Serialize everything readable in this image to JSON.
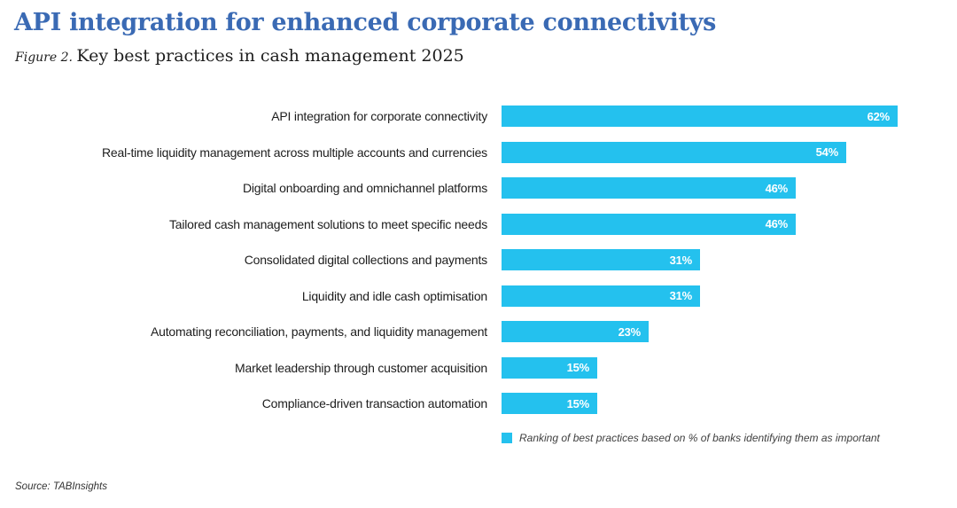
{
  "header": {
    "title": "API integration for enhanced corporate connectivitys",
    "figure_label": "Figure 2.",
    "subtitle": "Key best practices in cash management 2025"
  },
  "chart_data": {
    "type": "bar",
    "orientation": "horizontal",
    "title": "Key best practices in cash management 2025",
    "categories": [
      "API integration for corporate connectivity",
      "Real-time liquidity management across multiple accounts and currencies",
      "Digital onboarding and omnichannel platforms",
      "Tailored cash management solutions to meet specific needs",
      "Consolidated digital collections and payments",
      "Liquidity and idle cash optimisation",
      "Automating reconciliation, payments, and liquidity management",
      "Market leadership through customer acquisition",
      "Compliance-driven transaction automation"
    ],
    "values": [
      62,
      54,
      46,
      46,
      31,
      31,
      23,
      15,
      15
    ],
    "value_labels": [
      "62%",
      "54%",
      "46%",
      "46%",
      "31%",
      "31%",
      "23%",
      "15%",
      "15%"
    ],
    "value_suffix": "%",
    "xlim": [
      0,
      100
    ],
    "grid": false,
    "bar_color": "#24c1ee",
    "value_label_color": "#ffffff",
    "legend": {
      "label": "Ranking of best practices based on % of banks identifying them as important",
      "swatch_color": "#24c1ee",
      "position": "bottom-right"
    }
  },
  "footer": {
    "source": "Source: TABInsights"
  },
  "colors": {
    "title_blue": "#3a6ab4",
    "bar_cyan": "#24c1ee",
    "category_text": "#1d1d1d"
  }
}
